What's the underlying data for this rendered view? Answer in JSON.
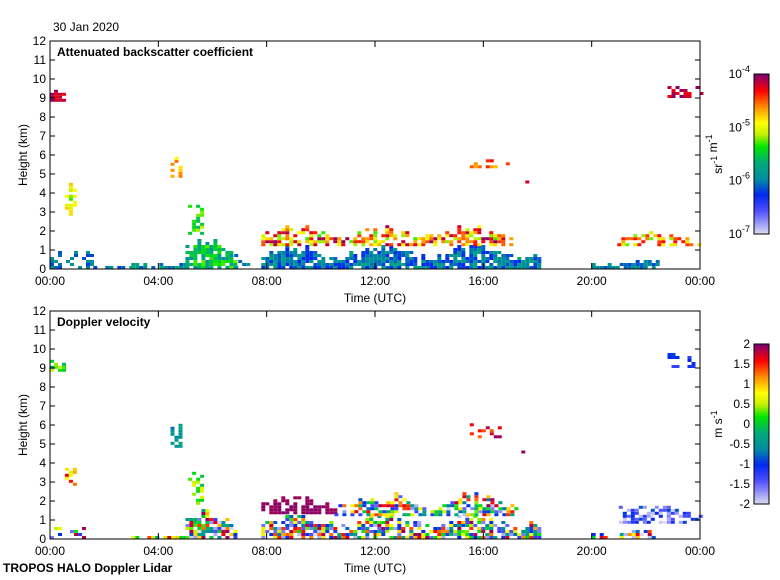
{
  "date": "30 Jan 2020",
  "footer": "TROPOS HALO Doppler Lidar",
  "chart_data": [
    {
      "type": "heatmap",
      "title": "Attenuated backscatter coefficient",
      "xlabel": "Time (UTC)",
      "ylabel": "Height (km)",
      "xlim_hours": [
        0,
        24
      ],
      "ylim": [
        0,
        12
      ],
      "xticks": [
        {
          "v": 0,
          "label": "00:00"
        },
        {
          "v": 4,
          "label": "04:00"
        },
        {
          "v": 8,
          "label": "08:00"
        },
        {
          "v": 12,
          "label": "12:00"
        },
        {
          "v": 16,
          "label": "16:00"
        },
        {
          "v": 20,
          "label": "20:00"
        },
        {
          "v": 24,
          "label": "00:00"
        }
      ],
      "yticks": [
        "0",
        "1",
        "2",
        "3",
        "4",
        "5",
        "6",
        "7",
        "8",
        "9",
        "10",
        "11",
        "12"
      ],
      "colorbar": {
        "scale": "log10",
        "range": [
          -7,
          -4
        ],
        "ticks": [
          {
            "v": -4,
            "base": "10",
            "exp": "-4"
          },
          {
            "v": -5,
            "base": "10",
            "exp": "-5"
          },
          {
            "v": -6,
            "base": "10",
            "exp": "-6"
          },
          {
            "v": -7,
            "base": "10",
            "exp": "-7"
          }
        ],
        "unit": [
          {
            "t": "sr",
            "exp": "-1"
          },
          {
            "t": " m",
            "exp": "-1"
          }
        ]
      },
      "features": [
        {
          "t": [
            0.0,
            0.5
          ],
          "h": [
            8.8,
            9.9
          ],
          "v": [
            -4.3,
            -4.0
          ],
          "d": 0.8
        },
        {
          "t": [
            0.55,
            0.85
          ],
          "h": [
            2.8,
            5.5
          ],
          "v": [
            -5.3,
            -4.6
          ],
          "d": 0.5
        },
        {
          "t": [
            4.45,
            4.75
          ],
          "h": [
            4.8,
            6.8
          ],
          "v": [
            -5.0,
            -4.5
          ],
          "d": 0.5
        },
        {
          "t": [
            5.1,
            5.6
          ],
          "h": [
            1.8,
            3.8
          ],
          "v": [
            -5.6,
            -5.1
          ],
          "d": 0.4
        },
        {
          "t": [
            0.0,
            1.6
          ],
          "h": [
            0.0,
            1.5
          ],
          "v": [
            -6.2,
            -5.8
          ],
          "d": 0.5
        },
        {
          "t": [
            1.6,
            3.0
          ],
          "h": [
            0.0,
            0.2
          ],
          "v": [
            -6.2,
            -5.8
          ],
          "d": 0.6
        },
        {
          "t": [
            3.0,
            5.0
          ],
          "h": [
            0.0,
            0.45
          ],
          "v": [
            -6.2,
            -5.6
          ],
          "d": 0.9
        },
        {
          "t": [
            5.0,
            6.8
          ],
          "h": [
            0.0,
            1.6
          ],
          "v": [
            -5.9,
            -5.2
          ],
          "d": 0.85
        },
        {
          "t": [
            6.8,
            7.3
          ],
          "h": [
            0.0,
            1.2
          ],
          "v": [
            -6.2,
            -5.8
          ],
          "d": 0.4
        },
        {
          "t": [
            7.8,
            18.0
          ],
          "h": [
            0.0,
            1.4
          ],
          "v": [
            -6.3,
            -5.7
          ],
          "d": 0.85
        },
        {
          "t": [
            7.8,
            17.2
          ],
          "h": [
            1.2,
            2.4
          ],
          "v": [
            -5.3,
            -4.0
          ],
          "d": 0.6
        },
        {
          "t": [
            15.5,
            16.9
          ],
          "h": [
            5.3,
            6.2
          ],
          "v": [
            -4.8,
            -4.2
          ],
          "d": 0.35
        },
        {
          "t": [
            17.4,
            17.6
          ],
          "h": [
            4.5,
            4.9
          ],
          "v": [
            -4.2,
            -4.0
          ],
          "d": 0.8
        },
        {
          "t": [
            20.0,
            22.5
          ],
          "h": [
            0.0,
            0.6
          ],
          "v": [
            -6.2,
            -5.8
          ],
          "d": 0.85
        },
        {
          "t": [
            20.8,
            24.0
          ],
          "h": [
            1.2,
            2.1
          ],
          "v": [
            -5.3,
            -4.3
          ],
          "d": 0.55
        },
        {
          "t": [
            22.8,
            24.0
          ],
          "h": [
            9.0,
            10.0
          ],
          "v": [
            -4.3,
            -4.0
          ],
          "d": 0.5
        }
      ]
    },
    {
      "type": "heatmap",
      "title": "Doppler velocity",
      "xlabel": "Time (UTC)",
      "ylabel": "Height (km)",
      "xlim_hours": [
        0,
        24
      ],
      "ylim": [
        0,
        12
      ],
      "xticks": [
        {
          "v": 0,
          "label": "00:00"
        },
        {
          "v": 4,
          "label": "04:00"
        },
        {
          "v": 8,
          "label": "08:00"
        },
        {
          "v": 12,
          "label": "12:00"
        },
        {
          "v": 16,
          "label": "16:00"
        },
        {
          "v": 20,
          "label": "20:00"
        },
        {
          "v": 24,
          "label": "00:00"
        }
      ],
      "yticks": [
        "0",
        "1",
        "2",
        "3",
        "4",
        "5",
        "6",
        "7",
        "8",
        "9",
        "10",
        "11",
        "12"
      ],
      "colorbar": {
        "scale": "linear",
        "range": [
          -2,
          2
        ],
        "ticks": [
          {
            "v": 2,
            "label": "2"
          },
          {
            "v": 1.5,
            "label": "1.5"
          },
          {
            "v": 1,
            "label": "1"
          },
          {
            "v": 0.5,
            "label": "0.5"
          },
          {
            "v": 0,
            "label": "0"
          },
          {
            "v": -0.5,
            "label": "-0.5"
          },
          {
            "v": -1,
            "label": "-1"
          },
          {
            "v": -1.5,
            "label": "-1.5"
          },
          {
            "v": -2,
            "label": "-2"
          }
        ],
        "unit": [
          {
            "t": "m s",
            "exp": "-1"
          }
        ]
      },
      "features": [
        {
          "t": [
            0.0,
            0.5
          ],
          "h": [
            8.8,
            9.9
          ],
          "v": [
            -0.2,
            0.6
          ],
          "d": 0.8
        },
        {
          "t": [
            0.55,
            0.85
          ],
          "h": [
            2.8,
            5.5
          ],
          "v": [
            0.3,
            1.7
          ],
          "d": 0.5
        },
        {
          "t": [
            4.45,
            4.75
          ],
          "h": [
            4.8,
            6.8
          ],
          "v": [
            -0.8,
            -0.2
          ],
          "d": 0.5
        },
        {
          "t": [
            5.1,
            5.6
          ],
          "h": [
            1.8,
            3.8
          ],
          "v": [
            -0.1,
            0.7
          ],
          "d": 0.4
        },
        {
          "t": [
            0.0,
            1.3
          ],
          "h": [
            0.0,
            1.4
          ],
          "v": [
            -2,
            2
          ],
          "d": 0.35
        },
        {
          "t": [
            3.0,
            5.0
          ],
          "h": [
            0.0,
            0.4
          ],
          "v": [
            -2,
            2
          ],
          "d": 0.8
        },
        {
          "t": [
            5.0,
            6.8
          ],
          "h": [
            0.0,
            1.6
          ],
          "v": [
            -2,
            2
          ],
          "d": 0.7
        },
        {
          "t": [
            7.8,
            18.0
          ],
          "h": [
            0.0,
            1.4
          ],
          "v": [
            -2,
            2
          ],
          "d": 0.75
        },
        {
          "t": [
            7.8,
            10.5
          ],
          "h": [
            1.3,
            2.4
          ],
          "v": [
            1.9,
            2.0
          ],
          "d": 0.7
        },
        {
          "t": [
            10.5,
            17.2
          ],
          "h": [
            1.2,
            2.5
          ],
          "v": [
            -2,
            2
          ],
          "d": 0.6
        },
        {
          "t": [
            15.5,
            16.9
          ],
          "h": [
            5.3,
            6.2
          ],
          "v": [
            1.2,
            2.0
          ],
          "d": 0.35
        },
        {
          "t": [
            17.4,
            17.6
          ],
          "h": [
            4.5,
            4.9
          ],
          "v": [
            1.9,
            2.0
          ],
          "d": 0.8
        },
        {
          "t": [
            20.0,
            22.5
          ],
          "h": [
            0.0,
            0.6
          ],
          "v": [
            -2,
            2
          ],
          "d": 0.6
        },
        {
          "t": [
            21.0,
            24.0
          ],
          "h": [
            0.8,
            2.1
          ],
          "v": [
            -2,
            -0.8
          ],
          "d": 0.6
        },
        {
          "t": [
            22.8,
            24.0
          ],
          "h": [
            9.0,
            10.0
          ],
          "v": [
            -1.3,
            -0.9
          ],
          "d": 0.5
        }
      ]
    }
  ]
}
